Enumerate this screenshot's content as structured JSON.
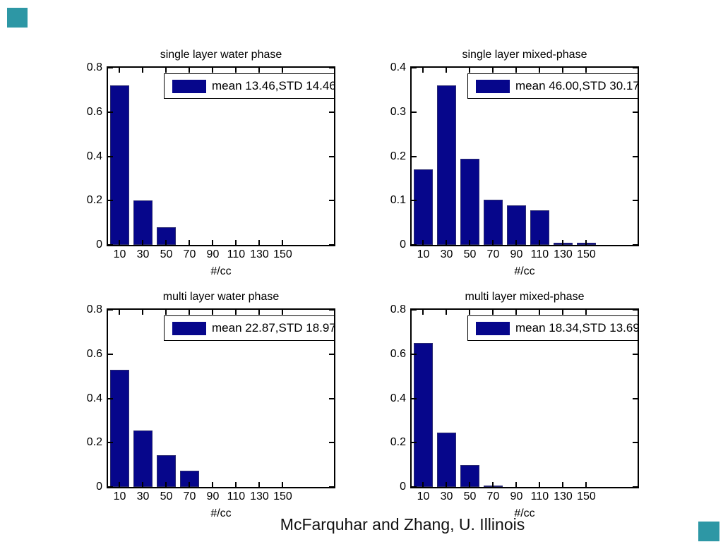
{
  "page": {
    "background": "#ffffff"
  },
  "decor": {
    "accent_color": "#2D97A5"
  },
  "caption": "McFarquhar and Zhang, U. Illinois",
  "chart_data": [
    {
      "type": "bar",
      "title": "single layer water phase",
      "xlabel": "#/cc",
      "categories": [
        10,
        30,
        50,
        70,
        90,
        110,
        130,
        150
      ],
      "values": [
        0.72,
        0.2,
        0.08,
        0,
        0,
        0,
        0,
        0
      ],
      "ylim": [
        0,
        0.8
      ],
      "yticks": [
        0,
        0.2,
        0.4,
        0.6,
        0.8
      ],
      "xlim": [
        0,
        194
      ],
      "bin_width": 16,
      "grid": false,
      "legend": "mean 13.46,STD 14.46",
      "legend_position": "top-right",
      "bar_color": "#06068B"
    },
    {
      "type": "bar",
      "title": "single layer mixed-phase",
      "xlabel": "#/cc",
      "categories": [
        10,
        30,
        50,
        70,
        90,
        110,
        130,
        150
      ],
      "values": [
        0.17,
        0.36,
        0.195,
        0.102,
        0.09,
        0.078,
        0.005,
        0.005
      ],
      "ylim": [
        0,
        0.4
      ],
      "yticks": [
        0,
        0.1,
        0.2,
        0.3,
        0.4
      ],
      "xlim": [
        0,
        194
      ],
      "bin_width": 16,
      "grid": false,
      "legend": "mean 46.00,STD 30.17",
      "legend_position": "top-right",
      "bar_color": "#06068B"
    },
    {
      "type": "bar",
      "title": "multi layer water phase",
      "xlabel": "#/cc",
      "categories": [
        10,
        30,
        50,
        70,
        90,
        110,
        130,
        150
      ],
      "values": [
        0.53,
        0.255,
        0.145,
        0.073,
        0,
        0,
        0,
        0
      ],
      "ylim": [
        0,
        0.8
      ],
      "yticks": [
        0,
        0.2,
        0.4,
        0.6,
        0.8
      ],
      "xlim": [
        0,
        194
      ],
      "bin_width": 16,
      "grid": false,
      "legend": "mean 22.87,STD 18.97",
      "legend_position": "top-right",
      "bar_color": "#06068B"
    },
    {
      "type": "bar",
      "title": "multi layer mixed-phase",
      "xlabel": "#/cc",
      "categories": [
        10,
        30,
        50,
        70,
        90,
        110,
        130,
        150
      ],
      "values": [
        0.65,
        0.245,
        0.1,
        0.005,
        0,
        0,
        0,
        0
      ],
      "ylim": [
        0,
        0.8
      ],
      "yticks": [
        0,
        0.2,
        0.4,
        0.6,
        0.8
      ],
      "xlim": [
        0,
        194
      ],
      "bin_width": 16,
      "grid": false,
      "legend": "mean 18.34,STD 13.69",
      "legend_position": "top-right",
      "bar_color": "#06068B"
    }
  ]
}
